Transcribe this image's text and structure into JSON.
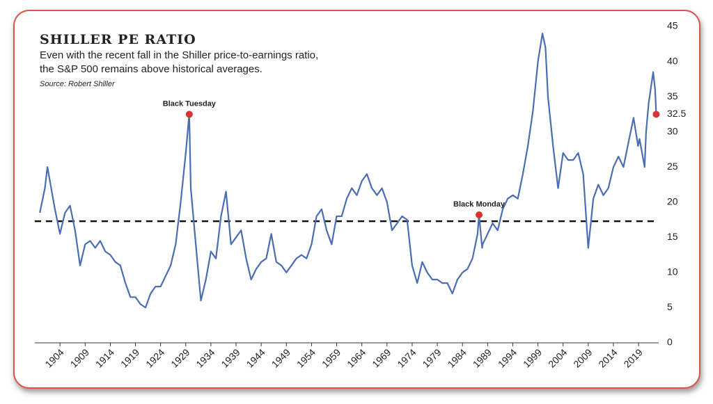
{
  "chart_data": {
    "type": "line",
    "title": "SHILLER PE RATIO",
    "subtitle": [
      "Even with the recent fall in the Shiller price-to-earnings ratio,",
      "the S&P 500 remains above historical averages."
    ],
    "source": "Source: Robert Shiller",
    "x": [
      1900,
      1901,
      1901.5,
      1902,
      1903,
      1904,
      1905,
      1906,
      1907,
      1908,
      1909,
      1910,
      1911,
      1912,
      1913,
      1914,
      1915,
      1916,
      1917,
      1918,
      1919,
      1920,
      1921,
      1922,
      1923,
      1924,
      1925,
      1926,
      1927,
      1928,
      1929,
      1929.7,
      1930,
      1931,
      1932,
      1933,
      1934,
      1935,
      1936,
      1937,
      1938,
      1939,
      1940,
      1941,
      1942,
      1943,
      1944,
      1945,
      1946,
      1947,
      1948,
      1949,
      1950,
      1951,
      1952,
      1953,
      1954,
      1955,
      1956,
      1957,
      1958,
      1959,
      1960,
      1961,
      1962,
      1963,
      1964,
      1965,
      1966,
      1967,
      1968,
      1969,
      1970,
      1971,
      1972,
      1973,
      1974,
      1975,
      1976,
      1977,
      1978,
      1979,
      1980,
      1981,
      1982,
      1983,
      1984,
      1985,
      1986,
      1987,
      1987.3,
      1987.9,
      1988,
      1989,
      1990,
      1991,
      1992,
      1993,
      1994,
      1995,
      1996,
      1997,
      1998,
      1999,
      1999.9,
      2000.5,
      2001,
      2002,
      2003,
      2004,
      2005,
      2006,
      2007,
      2008,
      2009,
      2009.5,
      2010,
      2011,
      2012,
      2013,
      2014,
      2015,
      2016,
      2017,
      2018,
      2018.9,
      2019.2,
      2020.2,
      2020.5,
      2021,
      2021.9,
      2022.3,
      2022.5
    ],
    "series": [
      {
        "name": "Shiller PE",
        "color": "#4a6db5",
        "values": [
          18.5,
          22,
          25,
          23,
          19,
          15.5,
          18.5,
          19.5,
          16,
          11,
          14,
          14.5,
          13.5,
          14.5,
          13,
          12.5,
          11.5,
          11,
          8.5,
          6.5,
          6.5,
          5.5,
          5,
          7,
          8,
          8,
          9.5,
          11,
          14,
          20,
          27,
          32.5,
          22,
          14,
          6,
          9,
          13,
          12,
          18,
          21.5,
          14,
          15,
          16,
          12,
          9,
          10.5,
          11.5,
          12,
          15.5,
          11.5,
          11,
          10,
          11,
          12,
          12.5,
          12,
          14,
          18,
          19,
          16,
          14,
          18,
          18,
          20.5,
          22,
          21,
          23,
          24,
          22,
          21,
          22,
          20,
          16,
          17,
          18,
          17.5,
          11,
          8.5,
          11.5,
          10,
          9,
          9,
          8.5,
          8.5,
          7,
          9,
          10,
          10.5,
          12,
          15.5,
          18.2,
          13.5,
          14,
          15.5,
          17,
          16,
          19,
          20.5,
          21,
          20.5,
          24,
          28,
          33,
          40,
          44,
          42,
          35,
          28,
          22,
          27,
          26,
          26,
          27,
          24,
          13.5,
          17,
          20.5,
          22.5,
          21,
          22,
          25,
          26.5,
          25,
          28.5,
          32,
          28,
          29,
          25,
          30,
          34,
          38.5,
          36,
          32.5
        ]
      }
    ],
    "reference_line": 17.3,
    "annotations": [
      {
        "text": "Black Tuesday",
        "x": 1929.7,
        "y": 32.5
      },
      {
        "text": "Black Monday",
        "x": 1987.3,
        "y": 18.2
      },
      {
        "text": "32.5",
        "x": 2022.5,
        "y": 32.5
      }
    ],
    "marker_color": "#d93434",
    "xlim": [
      1899,
      2023
    ],
    "xticks": [
      1904,
      1909,
      1914,
      1919,
      1924,
      1929,
      1934,
      1939,
      1944,
      1949,
      1954,
      1959,
      1964,
      1969,
      1974,
      1979,
      1984,
      1989,
      1994,
      1999,
      2004,
      2009,
      2014,
      2019
    ],
    "ylim": [
      0,
      45
    ],
    "yticks": [
      0,
      5,
      10,
      15,
      20,
      25,
      30,
      35,
      40,
      45
    ]
  }
}
